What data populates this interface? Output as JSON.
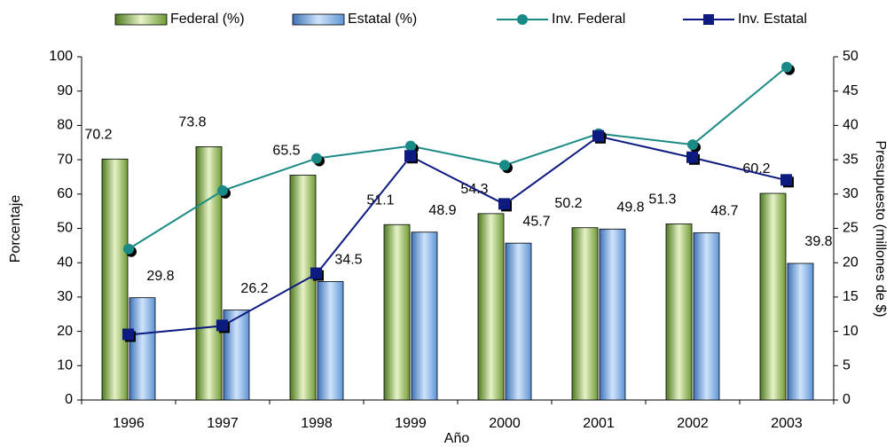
{
  "chart_data": {
    "type": "bar",
    "categories": [
      "1996",
      "1997",
      "1998",
      "1999",
      "2000",
      "2001",
      "2002",
      "2003"
    ],
    "x_label": "Año",
    "y_label": "Porcentaje",
    "y2_label": "Presupuesto (millones de $)",
    "ylim": [
      0,
      100
    ],
    "yticks": [
      0,
      10,
      20,
      30,
      40,
      50,
      60,
      70,
      80,
      90,
      100
    ],
    "y2lim": [
      0,
      50
    ],
    "y2ticks": [
      0,
      5,
      10,
      15,
      20,
      25,
      30,
      35,
      40,
      45,
      50
    ],
    "legend": "top",
    "series": [
      {
        "name": "Federal (%)",
        "type": "bar",
        "color": "#8fb84a",
        "values": [
          70.2,
          73.8,
          65.5,
          51.1,
          54.3,
          50.2,
          51.3,
          60.2
        ]
      },
      {
        "name": "Estatal (%)",
        "type": "bar",
        "color": "#7fb2e8",
        "values": [
          29.8,
          26.2,
          34.5,
          48.9,
          45.7,
          49.8,
          48.7,
          39.8
        ]
      },
      {
        "name": "Inv. Federal",
        "type": "line",
        "marker": "circle",
        "axis": "y2",
        "color": "#1a8a86",
        "values": [
          22,
          30.5,
          35.2,
          37,
          34.2,
          38.8,
          37.2,
          48.5
        ]
      },
      {
        "name": "Inv. Estatal",
        "type": "line",
        "marker": "square",
        "axis": "y2",
        "color": "#0d1a80",
        "values": [
          9.5,
          10.8,
          18.4,
          35.5,
          28.5,
          38.4,
          35.3,
          32
        ]
      }
    ]
  }
}
